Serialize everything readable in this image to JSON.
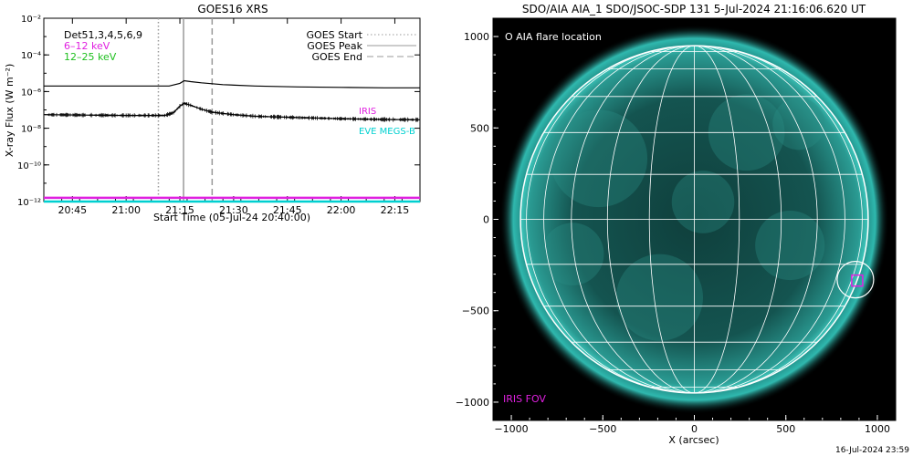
{
  "left_panel": {
    "title": "GOES16 XRS",
    "ylabel": "X-ray Flux (W m⁻²)",
    "xlabel": "Start Time (05-Jul-24 20:40:00)",
    "top_left_labels": [
      {
        "text": "Det51,3,4,5,6,9",
        "color": "#000000"
      },
      {
        "text": "6–12 keV",
        "color": "#e020e0"
      },
      {
        "text": "12–25 keV",
        "color": "#20c020"
      }
    ],
    "legend": [
      {
        "label": "GOES Start",
        "style": "dotted",
        "color": "#999999"
      },
      {
        "label": "GOES Peak",
        "style": "solid",
        "color": "#999999"
      },
      {
        "label": "GOES End",
        "style": "dashed",
        "color": "#999999"
      }
    ],
    "right_labels": [
      {
        "text": "IRIS",
        "color": "#e020e0"
      },
      {
        "text": "EVE MEGS-B",
        "color": "#00d0d0"
      }
    ]
  },
  "right_panel": {
    "title": "SDO/AIA AIA_1 SDO/JSOC-SDP 131  5-Jul-2024 21:16:06.620 UT",
    "xlabel": "X (arcsec)",
    "legend_text": "O AIA flare location",
    "iris_fov_label": "IRIS FOV",
    "footer_date": "16-Jul-2024 23:59",
    "colors": {
      "disk": "#1a6a66",
      "corona": "#20a8a0",
      "grid": "#ffffff",
      "iris": "#e020e0"
    }
  },
  "chart_data": [
    {
      "type": "line",
      "title": "GOES16 XRS",
      "xlabel": "Start Time (05-Jul-24 20:40:00)",
      "ylabel": "X-ray Flux (W m⁻²)",
      "yscale": "log",
      "ylim": [
        1e-12,
        0.01
      ],
      "xlim": [
        20.617,
        22.367
      ],
      "x_unit": "hours UT",
      "x_ticks": [
        {
          "v": 20.75,
          "label": "20:45"
        },
        {
          "v": 21.0,
          "label": "21:00"
        },
        {
          "v": 21.25,
          "label": "21:15"
        },
        {
          "v": 21.5,
          "label": "21:30"
        },
        {
          "v": 21.75,
          "label": "21:45"
        },
        {
          "v": 22.0,
          "label": "22:00"
        },
        {
          "v": 22.25,
          "label": "22:15"
        }
      ],
      "y_ticks": [
        {
          "exp": -2,
          "label": "10⁻²"
        },
        {
          "exp": -4,
          "label": "10⁻⁴"
        },
        {
          "exp": -6,
          "label": "10⁻⁶"
        },
        {
          "exp": -8,
          "label": "10⁻⁸"
        },
        {
          "exp": -10,
          "label": "10⁻¹⁰"
        },
        {
          "exp": -12,
          "label": "10⁻¹²"
        }
      ],
      "event_lines": [
        {
          "label": "GOES Start",
          "x": 21.15,
          "style": "dotted"
        },
        {
          "label": "GOES Peak",
          "x": 21.267,
          "style": "solid"
        },
        {
          "label": "GOES End",
          "x": 21.4,
          "style": "dashed"
        }
      ],
      "series": [
        {
          "color": "#000000",
          "x": [
            20.617,
            21.0,
            21.2,
            21.25,
            21.27,
            21.3,
            21.35,
            21.45,
            21.6,
            21.8,
            22.0,
            22.2,
            22.367
          ],
          "y": [
            2e-06,
            2e-06,
            2e-06,
            2.8e-06,
            3.9e-06,
            3.5e-06,
            3e-06,
            2.4e-06,
            2e-06,
            1.8e-06,
            1.7e-06,
            1.6e-06,
            1.6e-06
          ]
        },
        {
          "color": "#000000",
          "x": [
            20.617,
            20.8,
            21.0,
            21.18,
            21.22,
            21.25,
            21.27,
            21.3,
            21.35,
            21.4,
            21.5,
            21.6,
            21.8,
            22.0,
            22.2,
            22.367
          ],
          "y": [
            5.5e-08,
            5.2e-08,
            5e-08,
            5e-08,
            7e-08,
            1.6e-07,
            2.3e-07,
            1.8e-07,
            1.1e-07,
            7.5e-08,
            5.5e-08,
            4.5e-08,
            3.8e-08,
            3.3e-08,
            3e-08,
            2.9e-08
          ]
        },
        {
          "color": "#e020e0",
          "x": [
            20.617,
            22.367
          ],
          "y": [
            1.6e-12,
            1.6e-12
          ]
        },
        {
          "color": "#00d0d0",
          "x": [
            20.617,
            22.367
          ],
          "y": [
            1e-12,
            1e-12
          ]
        }
      ]
    },
    {
      "type": "image",
      "title": "SDO/AIA AIA_1 SDO/JSOC-SDP 131  5-Jul-2024 21:16:06.620 UT",
      "xlabel": "X (arcsec)",
      "xlim": [
        -1100,
        1100
      ],
      "ylim": [
        -1100,
        1100
      ],
      "x_ticks": [
        -1000,
        -500,
        0,
        500,
        1000
      ],
      "y_ticks": [
        -1000,
        -500,
        0,
        500,
        1000
      ],
      "solar_radius_arcsec": 950,
      "flare_location": {
        "x": 880,
        "y": -330
      },
      "iris_fov": {
        "x": 890,
        "y": -335,
        "w": 60,
        "h": 60
      }
    }
  ]
}
